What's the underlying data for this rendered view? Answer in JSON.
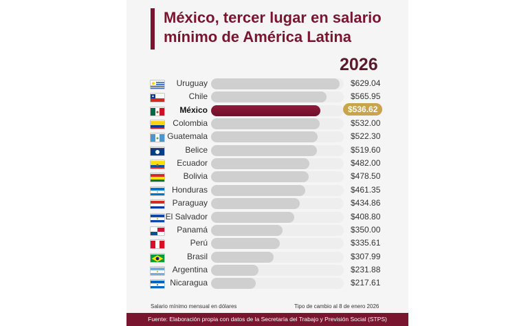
{
  "title": "México, tercer lugar en salario mínimo de América Latina",
  "year": "2026",
  "footnote_left": "Salario mínimo mensual en dólares",
  "footnote_right": "Tipo de cambio al 8 de enero 2026",
  "source": "Fuente: Elaboración propia con datos de la Secretaría del Trabajo y Previsión Social (STPS)",
  "colors": {
    "accent": "#7a1530",
    "highlight_bar": "#7a1530",
    "highlight_value": "#c9a44c",
    "bar": "#cfcfcf"
  },
  "chart_data": {
    "type": "bar",
    "orientation": "horizontal",
    "highlight": "México",
    "categories": [
      "Uruguay",
      "Chile",
      "México",
      "Colombia",
      "Guatemala",
      "Belice",
      "Ecuador",
      "Bolivia",
      "Honduras",
      "Paraguay",
      "El Salvador",
      "Panamá",
      "Perú",
      "Brasil",
      "Argentina",
      "Nicaragua"
    ],
    "values": [
      629.04,
      565.95,
      536.62,
      532.0,
      522.3,
      519.6,
      482.0,
      478.5,
      461.35,
      434.86,
      408.8,
      350.0,
      335.61,
      307.99,
      231.88,
      217.61
    ],
    "value_labels": [
      "$629.04",
      "$565.95",
      "$536.62",
      "$532.00",
      "$522.30",
      "$519.60",
      "$482.00",
      "$478.50",
      "$461.35",
      "$434.86",
      "$408.80",
      "$350.00",
      "$335.61",
      "$307.99",
      "$231.88",
      "$217.61"
    ],
    "flag_icons": [
      "uruguay-flag-icon",
      "chile-flag-icon",
      "mexico-flag-icon",
      "colombia-flag-icon",
      "guatemala-flag-icon",
      "belize-flag-icon",
      "ecuador-flag-icon",
      "bolivia-flag-icon",
      "honduras-flag-icon",
      "paraguay-flag-icon",
      "el-salvador-flag-icon",
      "panama-flag-icon",
      "peru-flag-icon",
      "brazil-flag-icon",
      "argentina-flag-icon",
      "nicaragua-flag-icon"
    ],
    "xlim": [
      0,
      650
    ]
  }
}
